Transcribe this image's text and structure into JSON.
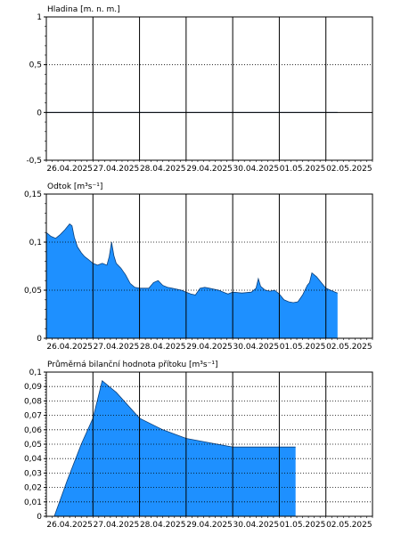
{
  "chart_data": [
    {
      "type": "area",
      "title": "Hladina [m. n. m.]",
      "ylim": [
        -0.5,
        1
      ],
      "y_ticks": [
        "-0,5",
        "0",
        "0,5",
        "1"
      ],
      "x_labels": [
        "26.04.2025",
        "27.04.2025",
        "28.04.2025",
        "29.04.2025",
        "30.04.2025",
        "01.05.2025",
        "02.05.2025"
      ],
      "grid": true,
      "fill_color": "#1e90ff",
      "x": [
        0,
        6.25
      ],
      "y": [
        0,
        0
      ]
    },
    {
      "type": "area",
      "title": "Odtok [m³s⁻¹]",
      "ylim": [
        0,
        0.15
      ],
      "y_ticks": [
        "0",
        "0,05",
        "0,1",
        "0,15"
      ],
      "x_labels": [
        "26.04.2025",
        "27.04.2025",
        "28.04.2025",
        "29.04.2025",
        "30.04.2025",
        "01.05.2025",
        "02.05.2025"
      ],
      "grid": true,
      "fill_color": "#1e90ff",
      "x": [
        0,
        0.1,
        0.2,
        0.3,
        0.4,
        0.5,
        0.55,
        0.6,
        0.67,
        0.75,
        0.82,
        0.9,
        1.0,
        1.1,
        1.2,
        1.3,
        1.35,
        1.4,
        1.45,
        1.5,
        1.6,
        1.7,
        1.8,
        1.9,
        2.0,
        2.1,
        2.2,
        2.3,
        2.4,
        2.5,
        2.6,
        2.7,
        2.8,
        2.9,
        3.0,
        3.1,
        3.2,
        3.3,
        3.4,
        3.5,
        3.6,
        3.7,
        3.8,
        3.9,
        4.0,
        4.2,
        4.4,
        4.5,
        4.55,
        4.6,
        4.7,
        4.8,
        4.9,
        5.0,
        5.1,
        5.2,
        5.3,
        5.4,
        5.5,
        5.6,
        5.65,
        5.7,
        5.8,
        5.9,
        6.0,
        6.1,
        6.2,
        6.25
      ],
      "y": [
        0.11,
        0.106,
        0.104,
        0.108,
        0.113,
        0.119,
        0.117,
        0.105,
        0.095,
        0.089,
        0.085,
        0.082,
        0.078,
        0.076,
        0.078,
        0.076,
        0.085,
        0.1,
        0.086,
        0.078,
        0.073,
        0.066,
        0.057,
        0.053,
        0.052,
        0.052,
        0.052,
        0.058,
        0.06,
        0.055,
        0.053,
        0.052,
        0.051,
        0.05,
        0.048,
        0.046,
        0.045,
        0.052,
        0.053,
        0.052,
        0.051,
        0.05,
        0.048,
        0.046,
        0.048,
        0.047,
        0.048,
        0.052,
        0.062,
        0.054,
        0.05,
        0.049,
        0.05,
        0.046,
        0.04,
        0.038,
        0.037,
        0.038,
        0.045,
        0.055,
        0.058,
        0.068,
        0.064,
        0.058,
        0.052,
        0.05,
        0.048,
        0.047
      ]
    },
    {
      "type": "area",
      "title": "Průměrná bilanční hodnota přítoku   [m³s⁻¹]",
      "ylim": [
        0,
        0.1
      ],
      "y_ticks": [
        "0",
        "0,01",
        "0,02",
        "0,03",
        "0,04",
        "0,05",
        "0,06",
        "0,07",
        "0,08",
        "0,09",
        "0,1"
      ],
      "x_labels": [
        "26.04.2025",
        "27.04.2025",
        "28.04.2025",
        "29.04.2025",
        "30.04.2025",
        "01.05.2025",
        "02.05.2025"
      ],
      "grid": true,
      "fill_color": "#1e90ff",
      "x": [
        0.17,
        0.45,
        0.75,
        1.0,
        1.2,
        1.5,
        2.0,
        2.5,
        3.0,
        3.5,
        4.0,
        4.5,
        5.0,
        5.35
      ],
      "y": [
        0,
        0.025,
        0.05,
        0.068,
        0.094,
        0.086,
        0.068,
        0.06,
        0.054,
        0.051,
        0.048,
        0.048,
        0.048,
        0.048
      ]
    }
  ]
}
